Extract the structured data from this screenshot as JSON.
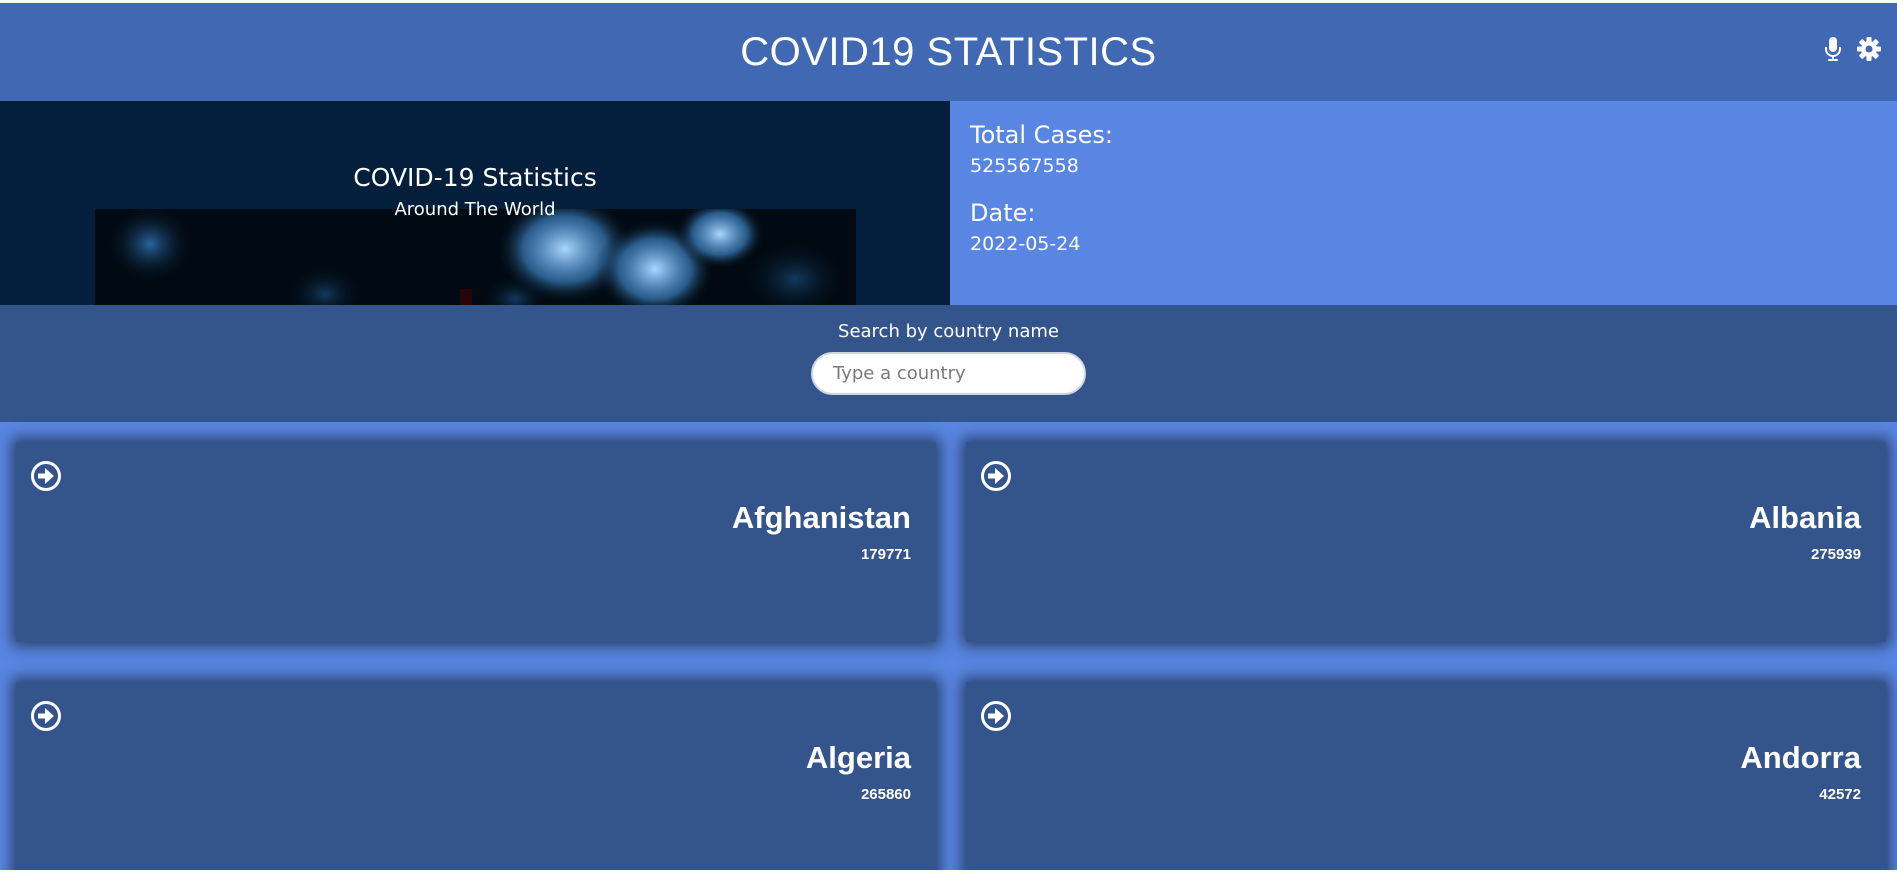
{
  "header": {
    "title": "COVID19 STATISTICS",
    "icons": [
      "microphone-icon",
      "gear-icon"
    ]
  },
  "hero": {
    "title": "COVID-19 Statistics",
    "subtitle": "Around The World",
    "total_cases_label": "Total Cases:",
    "total_cases_value": "525567558",
    "date_label": "Date:",
    "date_value": "2022-05-24"
  },
  "search": {
    "label": "Search by country name",
    "placeholder": "Type a country",
    "value": ""
  },
  "countries": [
    {
      "name": "Afghanistan",
      "cases": "179771"
    },
    {
      "name": "Albania",
      "cases": "275939"
    },
    {
      "name": "Algeria",
      "cases": "265860"
    },
    {
      "name": "Andorra",
      "cases": "42572"
    }
  ],
  "colors": {
    "header_bg": "#4169b3",
    "page_bg": "#5886e2",
    "card_bg": "#34558c",
    "hero_left_bg": "#041f3c"
  }
}
